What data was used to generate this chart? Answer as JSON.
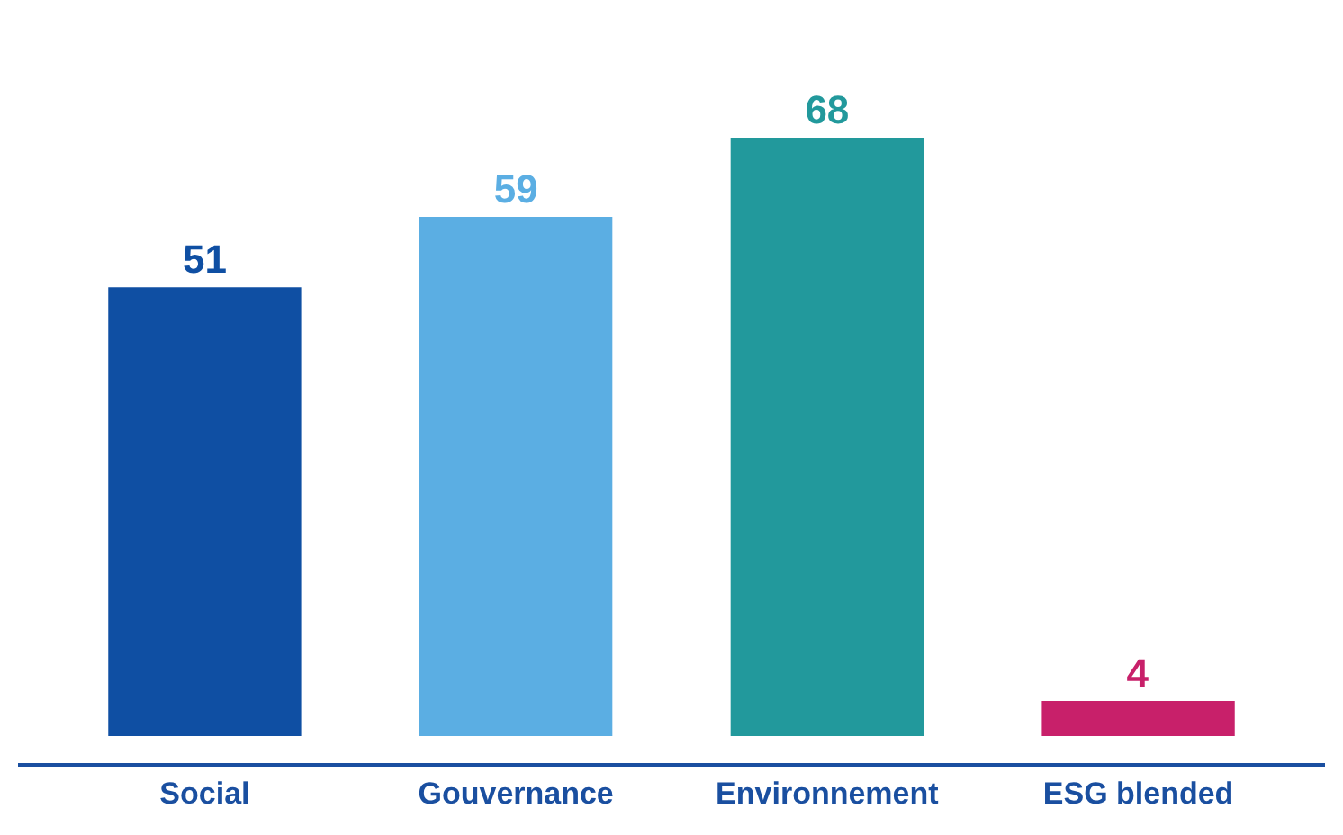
{
  "chart_data": {
    "type": "bar",
    "categories": [
      "Social",
      "Gouvernance",
      "Environnement",
      "ESG blended"
    ],
    "values": [
      51,
      59,
      68,
      4
    ],
    "colors": [
      "#0f4fa3",
      "#5baee3",
      "#22999c",
      "#c8206a"
    ],
    "data_labels": true
  }
}
